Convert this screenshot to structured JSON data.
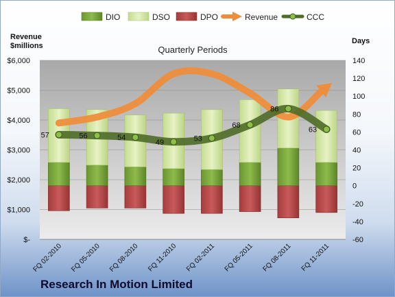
{
  "chart_data": {
    "type": "bar",
    "title": "Quarterly Periods",
    "subtitle": "Research In Motion Limited",
    "left_axis_label": [
      "Revenue",
      "$millions"
    ],
    "right_axis_label": "Days",
    "left_ticks": [
      "$-",
      "$1,000",
      "$2,000",
      "$3,000",
      "$4,000",
      "$5,000",
      "$6,000"
    ],
    "right_ticks": [
      "-60",
      "-40",
      "-20",
      "0",
      "20",
      "40",
      "60",
      "80",
      "100",
      "120",
      "140"
    ],
    "left_axis_range": [
      0,
      6000
    ],
    "right_axis_range": [
      -60,
      140
    ],
    "grid": true,
    "legend_position": "top",
    "categories": [
      "FQ 02-2010",
      "FQ 05-2010",
      "FQ 08-2010",
      "FQ 11-2010",
      "FQ 02-2011",
      "FQ 05-2011",
      "FQ 08-2011",
      "FQ 11-2011"
    ],
    "series": [
      {
        "name": "DIO",
        "axis": "right",
        "color": "#7aa23c",
        "values": [
          26,
          23,
          21,
          19,
          18,
          26,
          42,
          26
        ]
      },
      {
        "name": "DSO",
        "axis": "right",
        "color": "#d5e8a8",
        "values": [
          60,
          62,
          58,
          62,
          67,
          70,
          66,
          58
        ]
      },
      {
        "name": "DPO",
        "axis": "right",
        "color": "#b84a4a",
        "values": [
          -28,
          -25,
          -25,
          -31,
          -31,
          -29,
          -36,
          -30
        ]
      },
      {
        "name": "Revenue",
        "axis": "left",
        "color": "#ee8e3c",
        "values": [
          3900,
          4100,
          4550,
          5550,
          5550,
          4900,
          4100,
          5100
        ]
      },
      {
        "name": "CCC",
        "axis": "right",
        "color": "#4f6b28",
        "values": [
          57,
          56,
          54,
          49,
          53,
          68,
          86,
          63
        ]
      }
    ],
    "ccc_labels": [
      "57",
      "56",
      "54",
      "49",
      "53",
      "68",
      "86",
      "63"
    ]
  }
}
